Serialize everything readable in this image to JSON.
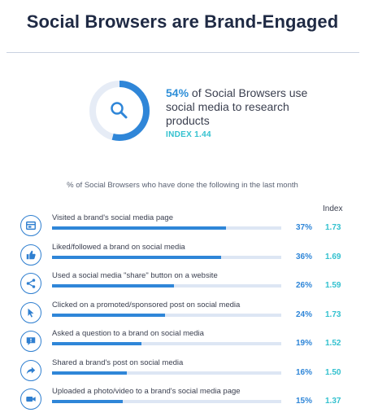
{
  "title": "Social Browsers are Brand-Engaged",
  "highlight": {
    "percent": "54%",
    "percent_value": 54,
    "text": " of Social Browsers use social media to research products",
    "index_label": "INDEX 1.44",
    "icon": "search-icon"
  },
  "subtitle": "% of Social Browsers who have done the following in the last month",
  "index_header": "Index",
  "colors": {
    "title": "#1f2a44",
    "bar": "#2f86d8",
    "track": "#dde6f4",
    "index": "#33c1cf",
    "donut_track": "#e6ecf6"
  },
  "chart_data": {
    "type": "bar",
    "orientation": "horizontal",
    "categories": [
      "Visited a brand's social media page",
      "Liked/followed a brand on social media",
      "Used a social media \"share\" button on a website",
      "Clicked on a promoted/sponsored post on social media",
      "Asked a question to a brand on social media",
      "Shared a brand's post on social media",
      "Uploaded a photo/video to a brand's social media page"
    ],
    "values": [
      37,
      36,
      26,
      24,
      19,
      16,
      15
    ],
    "value_labels": [
      "37%",
      "36%",
      "26%",
      "24%",
      "19%",
      "16%",
      "15%"
    ],
    "index_values": [
      "1.73",
      "1.69",
      "1.59",
      "1.73",
      "1.52",
      "1.50",
      "1.37"
    ],
    "icons": [
      "browser-window-icon",
      "thumbs-up-icon",
      "share-icon",
      "cursor-icon",
      "speech-bubble-icon",
      "forward-arrow-icon",
      "video-camera-icon"
    ],
    "xlim": [
      0,
      100
    ]
  }
}
